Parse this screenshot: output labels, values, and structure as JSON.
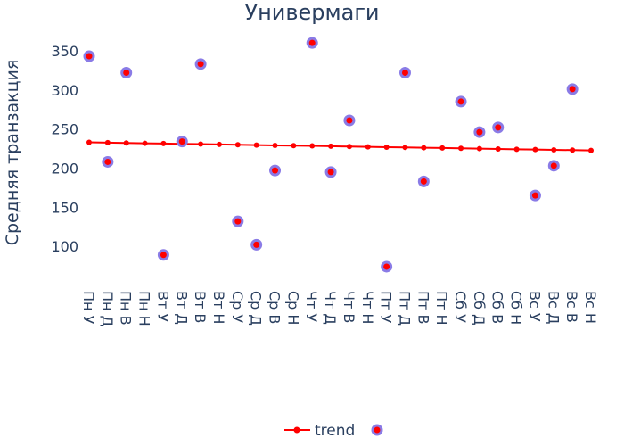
{
  "chart_data": {
    "type": "scatter",
    "title": "Универмаги",
    "xlabel": "",
    "ylabel": "Средняя транзакция",
    "categories": [
      "Пн У",
      "Пн Д",
      "Пн В",
      "Пн Н",
      "Вт У",
      "Вт Д",
      "Вт В",
      "Вт Н",
      "Ср У",
      "Ср Д",
      "Ср В",
      "Ср Н",
      "Чт У",
      "Чт Д",
      "Чт В",
      "Чт Н",
      "Пт У",
      "Пт Д",
      "Пт В",
      "Пт Н",
      "Сб У",
      "Сб Д",
      "Сб В",
      "Сб Н",
      "Вс У",
      "Вс Д",
      "Вс В",
      "Вс Н"
    ],
    "yticks": [
      100,
      150,
      200,
      250,
      300,
      350
    ],
    "ylim": [
      50,
      375
    ],
    "grid": false,
    "legend_position": "bottom-center",
    "series": [
      {
        "name": "trend",
        "kind": "line+markers",
        "color": "#ff0000",
        "values": [
          233,
          232.6,
          232.2,
          231.8,
          231.5,
          231.1,
          230.7,
          230.3,
          229.9,
          229.5,
          229.1,
          228.8,
          228.4,
          228,
          227.6,
          227.2,
          226.8,
          226.4,
          226.1,
          225.7,
          225.3,
          224.9,
          224.5,
          224.1,
          223.7,
          223.4,
          223,
          222.6
        ]
      },
      {
        "name": "",
        "kind": "markers",
        "color": "#ff0000",
        "outline_color": "#8a7be6",
        "points": [
          {
            "category": "Пн У",
            "value": 343
          },
          {
            "category": "Пн Д",
            "value": 208
          },
          {
            "category": "Пн В",
            "value": 322
          },
          {
            "category": "Вт У",
            "value": 89
          },
          {
            "category": "Вт Д",
            "value": 234
          },
          {
            "category": "Вт В",
            "value": 333
          },
          {
            "category": "Ср У",
            "value": 132
          },
          {
            "category": "Ср Д",
            "value": 102
          },
          {
            "category": "Ср В",
            "value": 197
          },
          {
            "category": "Чт У",
            "value": 360
          },
          {
            "category": "Чт Д",
            "value": 195
          },
          {
            "category": "Чт В",
            "value": 261
          },
          {
            "category": "Пт У",
            "value": 74
          },
          {
            "category": "Пт Д",
            "value": 322
          },
          {
            "category": "Пт В",
            "value": 183
          },
          {
            "category": "Сб У",
            "value": 285
          },
          {
            "category": "Сб Д",
            "value": 246
          },
          {
            "category": "Сб В",
            "value": 252
          },
          {
            "category": "Вс У",
            "value": 165
          },
          {
            "category": "Вс Д",
            "value": 203
          },
          {
            "category": "Вс В",
            "value": 301
          }
        ]
      }
    ]
  }
}
